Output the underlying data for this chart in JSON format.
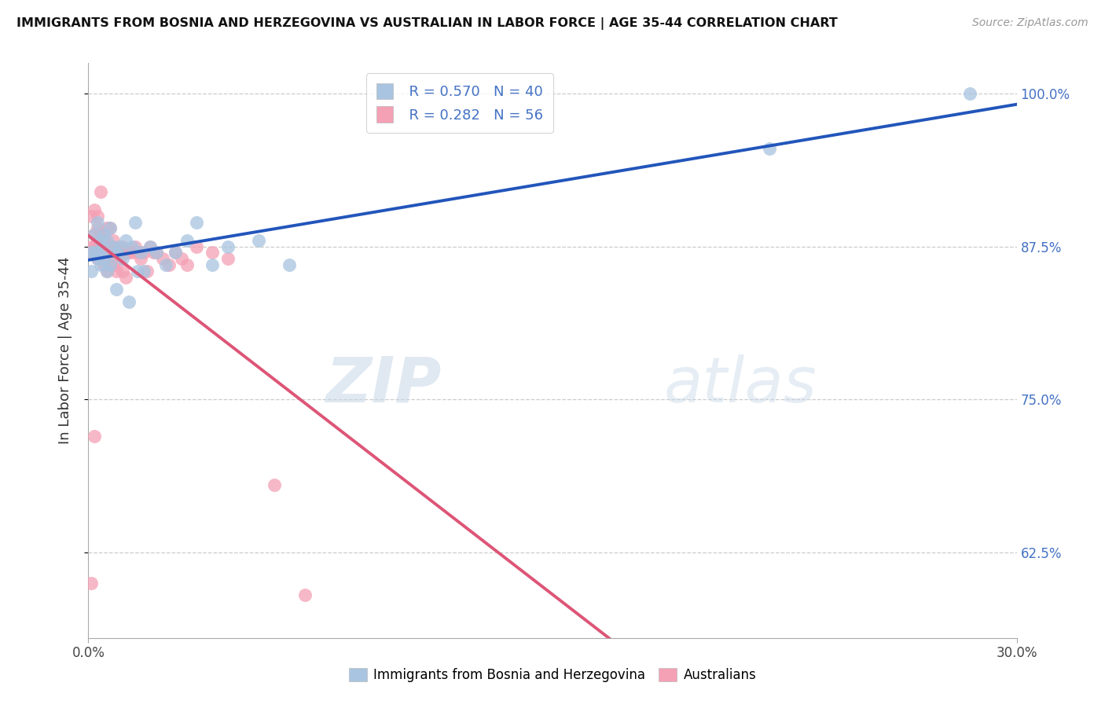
{
  "title": "IMMIGRANTS FROM BOSNIA AND HERZEGOVINA VS AUSTRALIAN IN LABOR FORCE | AGE 35-44 CORRELATION CHART",
  "source": "Source: ZipAtlas.com",
  "ylabel": "In Labor Force | Age 35-44",
  "xlim": [
    0.0,
    0.3
  ],
  "ylim": [
    0.555,
    1.025
  ],
  "yticks": [
    0.625,
    0.75,
    0.875,
    1.0
  ],
  "ytick_labels": [
    "62.5%",
    "75.0%",
    "87.5%",
    "100.0%"
  ],
  "xticks": [
    0.0,
    0.3
  ],
  "xtick_labels": [
    "0.0%",
    "30.0%"
  ],
  "r_blue": 0.57,
  "n_blue": 40,
  "r_pink": 0.282,
  "n_pink": 56,
  "legend_blue_label": "Immigrants from Bosnia and Herzegovina",
  "legend_pink_label": "Australians",
  "blue_color": "#a8c4e0",
  "pink_color": "#f4a0b5",
  "blue_line_color": "#2255bb",
  "pink_line_color": "#dd5577",
  "blue_x": [
    0.001,
    0.001,
    0.002,
    0.002,
    0.003,
    0.003,
    0.003,
    0.004,
    0.004,
    0.004,
    0.005,
    0.005,
    0.006,
    0.006,
    0.007,
    0.007,
    0.008,
    0.009,
    0.009,
    0.01,
    0.011,
    0.012,
    0.013,
    0.014,
    0.015,
    0.016,
    0.017,
    0.018,
    0.02,
    0.022,
    0.025,
    0.028,
    0.032,
    0.035,
    0.04,
    0.045,
    0.055,
    0.065,
    0.22,
    0.285
  ],
  "blue_y": [
    0.87,
    0.855,
    0.885,
    0.87,
    0.87,
    0.865,
    0.895,
    0.87,
    0.88,
    0.86,
    0.885,
    0.865,
    0.88,
    0.855,
    0.89,
    0.86,
    0.875,
    0.84,
    0.87,
    0.875,
    0.865,
    0.88,
    0.83,
    0.875,
    0.895,
    0.855,
    0.87,
    0.855,
    0.875,
    0.87,
    0.86,
    0.87,
    0.88,
    0.895,
    0.86,
    0.875,
    0.88,
    0.86,
    0.955,
    1.0
  ],
  "pink_x": [
    0.001,
    0.001,
    0.001,
    0.002,
    0.002,
    0.002,
    0.003,
    0.003,
    0.003,
    0.003,
    0.004,
    0.004,
    0.004,
    0.005,
    0.005,
    0.005,
    0.005,
    0.006,
    0.006,
    0.006,
    0.007,
    0.007,
    0.007,
    0.008,
    0.008,
    0.008,
    0.009,
    0.009,
    0.01,
    0.01,
    0.011,
    0.011,
    0.012,
    0.012,
    0.013,
    0.014,
    0.015,
    0.016,
    0.017,
    0.018,
    0.019,
    0.02,
    0.021,
    0.022,
    0.024,
    0.026,
    0.028,
    0.03,
    0.032,
    0.035,
    0.04,
    0.045,
    0.06,
    0.07,
    0.002,
    0.001
  ],
  "pink_y": [
    0.87,
    0.9,
    0.875,
    0.905,
    0.885,
    0.875,
    0.9,
    0.88,
    0.89,
    0.865,
    0.885,
    0.875,
    0.92,
    0.885,
    0.87,
    0.88,
    0.86,
    0.89,
    0.875,
    0.855,
    0.89,
    0.87,
    0.86,
    0.88,
    0.86,
    0.875,
    0.87,
    0.855,
    0.87,
    0.865,
    0.875,
    0.855,
    0.87,
    0.85,
    0.87,
    0.87,
    0.875,
    0.87,
    0.865,
    0.87,
    0.855,
    0.875,
    0.87,
    0.87,
    0.865,
    0.86,
    0.87,
    0.865,
    0.86,
    0.875,
    0.87,
    0.865,
    0.68,
    0.59,
    0.72,
    0.6
  ]
}
